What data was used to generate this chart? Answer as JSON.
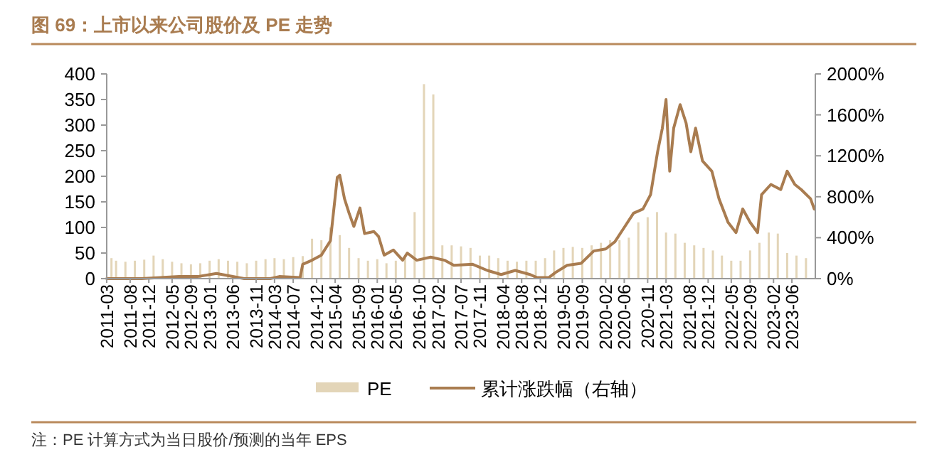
{
  "chart_data": {
    "type": "bar",
    "title": "图 69：上市以来公司股价及 PE 走势",
    "xlim": [
      "2011-03",
      "2023-11"
    ],
    "xticks": [
      "2011-03",
      "2011-08",
      "2011-12",
      "2012-05",
      "2012-09",
      "2013-01",
      "2013-06",
      "2013-11",
      "2014-03",
      "2014-07",
      "2014-12",
      "2015-04",
      "2015-09",
      "2016-01",
      "2016-05",
      "2016-10",
      "2017-02",
      "2017-07",
      "2017-11",
      "2018-04",
      "2018-08",
      "2018-12",
      "2019-05",
      "2019-09",
      "2020-02",
      "2020-06",
      "2020-11",
      "2021-03",
      "2021-08",
      "2021-12",
      "2022-05",
      "2022-09",
      "2023-02",
      "2023-06"
    ],
    "ylim": [
      0,
      400
    ],
    "yticks": [
      0,
      50,
      100,
      150,
      200,
      250,
      300,
      350,
      400
    ],
    "y2lim": [
      0,
      2000
    ],
    "y2ticks": [
      {
        "value": 0,
        "label": "0%"
      },
      {
        "value": 400,
        "label": "400%"
      },
      {
        "value": 800,
        "label": "800%"
      },
      {
        "value": 1200,
        "label": "1200%"
      },
      {
        "value": 1600,
        "label": "1600%"
      },
      {
        "value": 2000,
        "label": "2000%"
      }
    ],
    "legend": "bottom",
    "annotations": [
      "注：PE 计算方式为当日股价/预测的当年 EPS"
    ],
    "series": [
      {
        "name": "PE",
        "color": "#e3d5b8",
        "x": [
          "2011-04",
          "2011-05",
          "2011-07",
          "2011-09",
          "2011-11",
          "2012-01",
          "2012-03",
          "2012-05",
          "2012-07",
          "2012-09",
          "2012-11",
          "2013-01",
          "2013-03",
          "2013-05",
          "2013-07",
          "2013-09",
          "2013-11",
          "2014-01",
          "2014-03",
          "2014-05",
          "2014-07",
          "2014-09",
          "2014-11",
          "2015-01",
          "2015-03",
          "2015-05",
          "2015-07",
          "2015-09",
          "2015-11",
          "2016-01",
          "2016-03",
          "2016-05",
          "2016-07",
          "2016-09",
          "2016-11",
          "2017-01",
          "2017-03",
          "2017-05",
          "2017-07",
          "2017-09",
          "2017-11",
          "2018-01",
          "2018-03",
          "2018-05",
          "2018-07",
          "2018-09",
          "2018-11",
          "2019-01",
          "2019-03",
          "2019-05",
          "2019-07",
          "2019-09",
          "2019-11",
          "2020-01",
          "2020-03",
          "2020-05",
          "2020-07",
          "2020-09",
          "2020-11",
          "2021-01",
          "2021-03",
          "2021-05",
          "2021-07",
          "2021-09",
          "2021-11",
          "2022-01",
          "2022-03",
          "2022-05",
          "2022-07",
          "2022-09",
          "2022-11",
          "2023-01",
          "2023-03",
          "2023-05",
          "2023-07",
          "2023-09"
        ],
        "values": [
          40,
          35,
          33,
          35,
          37,
          45,
          38,
          33,
          30,
          28,
          30,
          35,
          38,
          35,
          33,
          30,
          35,
          38,
          40,
          38,
          42,
          44,
          78,
          75,
          100,
          85,
          60,
          40,
          35,
          38,
          30,
          35,
          40,
          130,
          380,
          360,
          65,
          65,
          63,
          60,
          45,
          45,
          40,
          35,
          33,
          35,
          35,
          40,
          55,
          60,
          62,
          60,
          65,
          70,
          75,
          75,
          80,
          110,
          120,
          130,
          90,
          88,
          70,
          65,
          60,
          55,
          45,
          35,
          35,
          55,
          70,
          90,
          88,
          50,
          45,
          40
        ]
      },
      {
        "name": "累计涨跌幅（右轴）",
        "type": "line",
        "axis": "y2",
        "color": "#a97c50",
        "x": [
          "2011-03-01",
          "2011-10-15",
          "2012-06-15",
          "2012-10-15",
          "2013-02-15",
          "2013-08-15",
          "2014-02-01",
          "2014-04-01",
          "2014-08-15",
          "2014-09-01",
          "2014-11-01",
          "2015-01-01",
          "2015-03-01",
          "2015-04-15",
          "2015-05-01",
          "2015-06-01",
          "2015-07-01",
          "2015-08-01",
          "2015-09-10",
          "2015-10-10",
          "2015-12-10",
          "2016-01-10",
          "2016-02-15",
          "2016-04-15",
          "2016-06-15",
          "2016-07-15",
          "2016-09-15",
          "2016-12-15",
          "2017-03-15",
          "2017-05-15",
          "2017-09-15",
          "2017-12-20",
          "2018-03-20",
          "2018-06-20",
          "2018-09-25",
          "2018-11-10",
          "2019-01-25",
          "2019-03-10",
          "2019-05-25",
          "2019-08-25",
          "2019-11-15",
          "2020-02-01",
          "2020-04-01",
          "2020-06-01",
          "2020-08-01",
          "2020-10-01",
          "2020-11-20",
          "2021-01-05",
          "2021-02-05",
          "2021-03-01",
          "2021-03-25",
          "2021-04-20",
          "2021-06-01",
          "2021-07-10",
          "2021-08-10",
          "2021-09-10",
          "2021-10-25",
          "2021-12-25",
          "2022-02-10",
          "2022-04-10",
          "2022-06-01",
          "2022-07-15",
          "2022-09-01",
          "2022-10-20",
          "2022-11-15",
          "2023-01-15",
          "2023-03-20",
          "2023-05-01",
          "2023-06-20",
          "2023-08-01",
          "2023-10-01",
          "2023-10-25"
        ],
        "values": [
          0,
          0,
          20,
          20,
          50,
          0,
          0,
          20,
          10,
          140,
          180,
          230,
          370,
          990,
          1010,
          780,
          640,
          510,
          690,
          440,
          460,
          410,
          230,
          280,
          180,
          250,
          180,
          210,
          180,
          130,
          140,
          80,
          40,
          80,
          40,
          10,
          10,
          60,
          130,
          150,
          270,
          290,
          360,
          500,
          640,
          680,
          820,
          1240,
          1470,
          1750,
          1050,
          1470,
          1700,
          1520,
          1240,
          1470,
          1150,
          1050,
          780,
          550,
          450,
          680,
          550,
          450,
          820,
          920,
          870,
          1050,
          920,
          870,
          780,
          680
        ]
      }
    ]
  }
}
